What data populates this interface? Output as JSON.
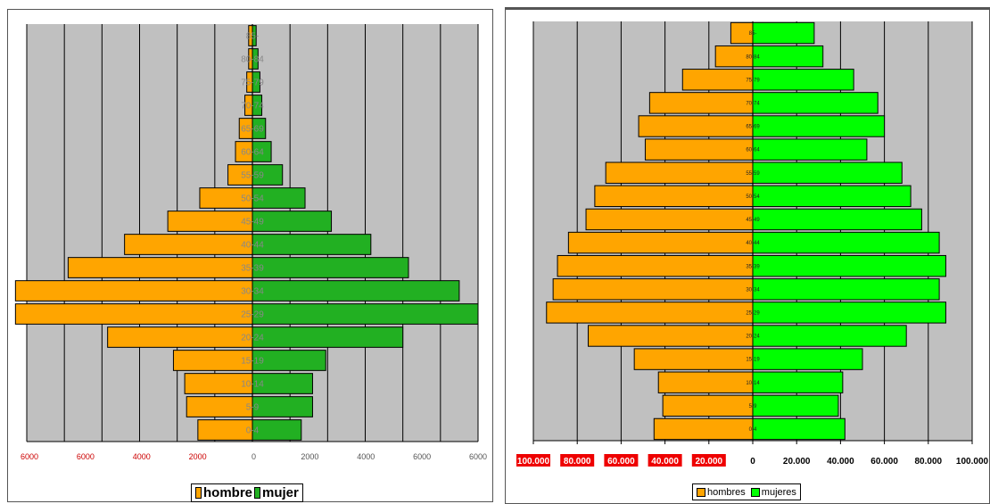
{
  "colors": {
    "male": "#ffa500",
    "female_left": "#22b022",
    "female_right": "#00ff00",
    "plot_bg": "#c0c0c0",
    "grid": "#000000",
    "tick_left_neg": "#cc0000",
    "tick_right_neg_bg": "#ee0000"
  },
  "chart_data": [
    {
      "type": "bar",
      "orientation": "horizontal",
      "layout": "population-pyramid",
      "categories": [
        "0-4",
        "5-9",
        "10-14",
        "15-19",
        "20-24",
        "25-29",
        "30-34",
        "35-39",
        "40-44",
        "45-49",
        "50-54",
        "55-59",
        "60-64",
        "65-69",
        "70-74",
        "75-79",
        "80-84",
        "85-"
      ],
      "series": [
        {
          "name": "hombre",
          "values": [
            -1450,
            -1750,
            -1800,
            -2100,
            -3850,
            -6300,
            -6300,
            -4900,
            -3400,
            -2250,
            -1400,
            -650,
            -450,
            -350,
            -200,
            -150,
            -100,
            -100
          ]
        },
        {
          "name": "mujer",
          "values": [
            1300,
            1600,
            1600,
            1950,
            4000,
            6000,
            5500,
            4150,
            3150,
            2100,
            1400,
            800,
            500,
            350,
            250,
            200,
            150,
            100
          ]
        }
      ],
      "xlim": [
        -6000,
        6000
      ],
      "xticks": [
        "6000",
        "6000",
        "4000",
        "2000",
        "0",
        "2000",
        "4000",
        "6000",
        "6000"
      ],
      "grid": true,
      "legend": "bottom"
    },
    {
      "type": "bar",
      "orientation": "horizontal",
      "layout": "population-pyramid",
      "categories": [
        "0-4",
        "5-9",
        "10-14",
        "15-19",
        "20-24",
        "25-29",
        "30-34",
        "35-39",
        "40-44",
        "45-49",
        "50-54",
        "55-59",
        "60-64",
        "65-69",
        "70-74",
        "75-79",
        "80-84",
        "85-"
      ],
      "series": [
        {
          "name": "hombres",
          "values": [
            -45000,
            -41000,
            -43000,
            -54000,
            -75000,
            -94000,
            -91000,
            -89000,
            -84000,
            -76000,
            -72000,
            -67000,
            -49000,
            -52000,
            -47000,
            -32000,
            -17000,
            -10000
          ]
        },
        {
          "name": "mujeres",
          "values": [
            42000,
            39000,
            41000,
            50000,
            70000,
            88000,
            85000,
            88000,
            85000,
            77000,
            72000,
            68000,
            52000,
            60000,
            57000,
            46000,
            32000,
            28000
          ]
        }
      ],
      "xlim": [
        -100000,
        100000
      ],
      "xticks": [
        "100.000",
        "80.000",
        "60.000",
        "40.000",
        "20.000",
        "0",
        "20.000",
        "40.000",
        "60.000",
        "80.000",
        "100.000"
      ],
      "grid": true,
      "legend": "bottom"
    }
  ]
}
